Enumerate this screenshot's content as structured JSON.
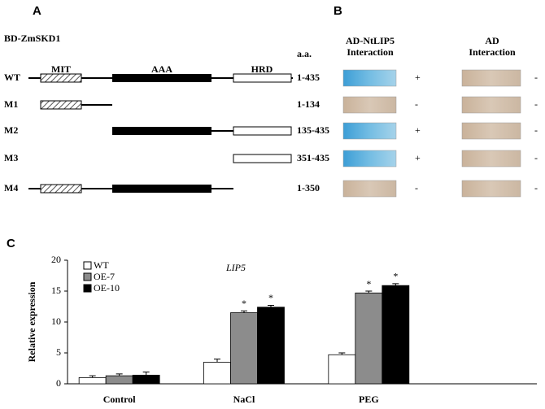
{
  "panel_a": {
    "label": "A",
    "construct": "BD-ZmSKD1",
    "aa_header": "a.a.",
    "domains": [
      "MIT",
      "AAA",
      "HRD"
    ],
    "rows": [
      {
        "name": "WT",
        "range": "1-435"
      },
      {
        "name": "M1",
        "range": "1-134"
      },
      {
        "name": "M2",
        "range": "135-435"
      },
      {
        "name": "M3",
        "range": "351-435"
      },
      {
        "name": "M4",
        "range": "1-350"
      }
    ]
  },
  "panel_b": {
    "label": "B",
    "columns": [
      "AD-NtLIP5 Interaction",
      "AD Interaction"
    ],
    "results": [
      [
        "+",
        "-"
      ],
      [
        "-",
        "-"
      ],
      [
        "+",
        "-"
      ],
      [
        "+",
        "-"
      ],
      [
        "-",
        "-"
      ]
    ]
  },
  "panel_c": {
    "label": "C"
  },
  "chart_data": {
    "type": "bar",
    "title": "LIP5",
    "y_label": "Relative expression",
    "categories": [
      "Control",
      "NaCl",
      "PEG"
    ],
    "series": [
      {
        "name": "WT",
        "color": "#ffffff",
        "values": [
          1.0,
          3.5,
          4.7
        ],
        "errors": [
          0.3,
          0.5,
          0.3
        ],
        "significance": [
          null,
          null,
          null
        ]
      },
      {
        "name": "OE-7",
        "color": "#8c8c8c",
        "values": [
          1.3,
          11.5,
          14.7
        ],
        "errors": [
          0.3,
          0.3,
          0.3
        ],
        "significance": [
          null,
          "*",
          "*"
        ]
      },
      {
        "name": "OE-10",
        "color": "#000000",
        "values": [
          1.4,
          12.4,
          15.9
        ],
        "errors": [
          0.5,
          0.3,
          0.3
        ],
        "significance": [
          null,
          "*",
          "*"
        ]
      }
    ],
    "ylim": [
      0,
      20
    ],
    "yticks": [
      0,
      5,
      10,
      15,
      20
    ],
    "grid": false
  }
}
